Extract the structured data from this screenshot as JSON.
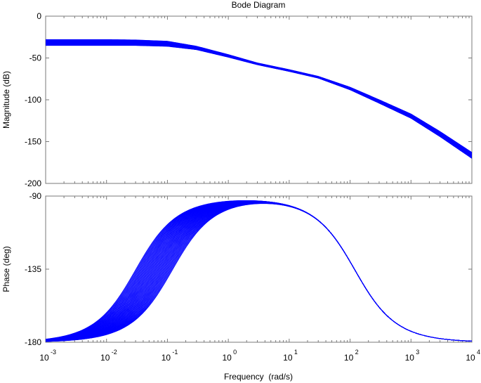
{
  "chart_data": [
    {
      "type": "line",
      "title": "Bode Diagram",
      "ylabel": "Magnitude (dB)",
      "xlabel": "",
      "xscale": "log",
      "xlim": [
        0.001,
        10000
      ],
      "ylim": [
        -200,
        0
      ],
      "yticks": [
        0,
        -50,
        -100,
        -150,
        -200
      ],
      "ytick_labels": [
        "0",
        "-50",
        "-100",
        "-150",
        "-200"
      ],
      "grid": false,
      "line_color": "#0000ff",
      "series_count": 40,
      "envelope": {
        "x": [
          0.001,
          0.01,
          0.03,
          0.1,
          0.3,
          1,
          3,
          10,
          30,
          100,
          300,
          1000,
          3000,
          10000
        ],
        "upper": [
          -28,
          -28,
          -28.5,
          -30,
          -36,
          -46,
          -56,
          -64,
          -72,
          -85,
          -100,
          -117,
          -138,
          -163
        ],
        "lower": [
          -35,
          -35,
          -35,
          -36,
          -40,
          -49,
          -58,
          -66,
          -74,
          -88,
          -104,
          -122,
          -144,
          -170
        ]
      }
    },
    {
      "type": "line",
      "title": "",
      "ylabel": "Phase (deg)",
      "xlabel": "Frequency  (rad/s)",
      "xscale": "log",
      "xlim": [
        0.001,
        10000
      ],
      "ylim": [
        -180,
        -90
      ],
      "yticks": [
        -90,
        -135,
        -180
      ],
      "ytick_labels": [
        "-90",
        "-135",
        "-180"
      ],
      "xticks": [
        0.001,
        0.01,
        0.1,
        1,
        10,
        100,
        1000,
        10000
      ],
      "xtick_labels": [
        {
          "base": "10",
          "exp": "-3"
        },
        {
          "base": "10",
          "exp": "-2"
        },
        {
          "base": "10",
          "exp": "-1"
        },
        {
          "base": "10",
          "exp": "0"
        },
        {
          "base": "10",
          "exp": "1"
        },
        {
          "base": "10",
          "exp": "2"
        },
        {
          "base": "10",
          "exp": "3"
        },
        {
          "base": "10",
          "exp": "4"
        }
      ],
      "grid": false,
      "line_color": "#0000ff",
      "series_count": 40,
      "phase_model": {
        "low_corner_range": [
          0.03,
          0.12
        ],
        "high_corner": 120,
        "low_freq_phase": -180,
        "peak_phase": -91
      }
    }
  ]
}
